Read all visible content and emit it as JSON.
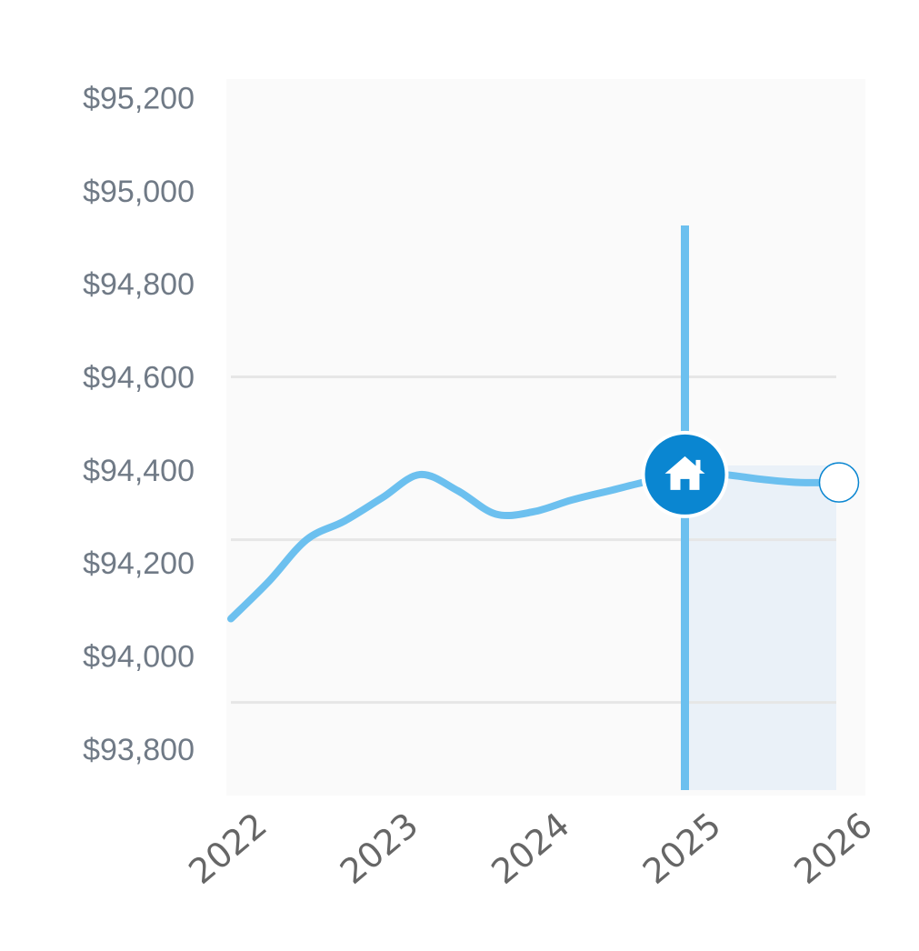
{
  "chart_data": {
    "type": "line",
    "x": [
      2022.0,
      2022.25,
      2022.5,
      2022.75,
      2023.0,
      2023.25,
      2023.5,
      2023.75,
      2024.0,
      2024.25,
      2024.5,
      2024.75,
      2025.0,
      2025.25,
      2025.5,
      2025.75,
      2026.0
    ],
    "y": [
      94080,
      94160,
      94250,
      94290,
      94340,
      94390,
      94355,
      94305,
      94310,
      94335,
      94355,
      94375,
      94390,
      94390,
      94380,
      94373,
      94373
    ],
    "xlim": [
      2022,
      2026
    ],
    "ylim": [
      93700,
      95240
    ],
    "x_ticks": [
      "2022",
      "2023",
      "2024",
      "2025",
      "2026"
    ],
    "y_ticks": [
      "$95,200",
      "$95,000",
      "$94,800",
      "$94,600",
      "$94,400",
      "$94,200",
      "$94,000",
      "$93,800"
    ],
    "y_tick_values": [
      95200,
      95000,
      94800,
      94600,
      94400,
      94200,
      94000,
      93800
    ],
    "gridlines_y": [
      94600,
      94250,
      93900
    ],
    "marker": {
      "x": 2025.0,
      "y": 94390,
      "icon": "home-icon"
    },
    "end_point": {
      "x": 2026.0,
      "y": 94373
    },
    "projection_range": [
      2025.0,
      2026.0
    ],
    "colors": {
      "line": "#6cc0ef",
      "marker": "#0a86d1",
      "projection_fill": "#eaf1f8",
      "plot_bg": "#fafafa",
      "grid": "#e6e6e6",
      "y_tick_text": "#707a86",
      "x_tick_text": "#666666"
    },
    "grid": true,
    "legend": "none"
  }
}
